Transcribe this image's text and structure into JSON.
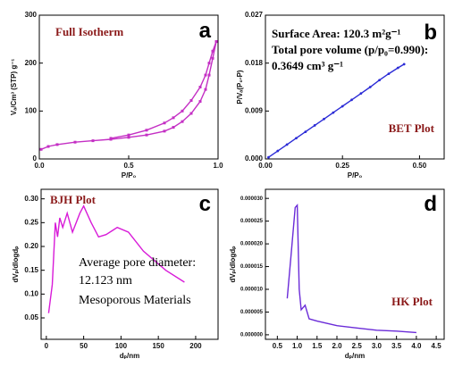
{
  "chart_data": [
    {
      "type": "line",
      "title": "Full Isotherm",
      "panel_label": "a",
      "x_label": "P/P₀",
      "y_label": "Vₐ/Cm³ (STP) g⁻¹",
      "xlim": [
        0,
        1.0
      ],
      "xticks": [
        {
          "value": 0,
          "label": "0.0"
        },
        0.5,
        {
          "value": 1,
          "label": "1.0"
        }
      ],
      "ylim": [
        0,
        300
      ],
      "yticks": [
        0,
        100,
        200,
        300
      ],
      "markers": "square",
      "series": [
        {
          "color": "#c42fc4",
          "x": [
            0.01,
            0.05,
            0.1,
            0.2,
            0.3,
            0.4,
            0.5,
            0.6,
            0.7,
            0.75,
            0.8,
            0.85,
            0.9,
            0.93,
            0.95,
            0.97,
            0.99
          ],
          "values": [
            20,
            26,
            30,
            35,
            38,
            41,
            45,
            50,
            58,
            66,
            78,
            95,
            120,
            145,
            175,
            210,
            245
          ]
        },
        {
          "color": "#c42fc4",
          "x": [
            0.4,
            0.5,
            0.6,
            0.7,
            0.75,
            0.8,
            0.85,
            0.9,
            0.93,
            0.95,
            0.97,
            0.99
          ],
          "values": [
            43,
            50,
            60,
            75,
            86,
            100,
            122,
            150,
            175,
            200,
            225,
            245
          ]
        }
      ]
    },
    {
      "type": "line",
      "title": "BET Plot",
      "panel_label": "b",
      "x_label": "P/P₀",
      "y_label": "P/Vₐ(P₀-P)",
      "annotations": [
        "Surface Area: 120.3 m²g⁻¹",
        "Total pore volume (p/p₀=0.990):",
        "0.3649 cm³ g⁻¹"
      ],
      "xlim": [
        0,
        0.58
      ],
      "xticks": [
        {
          "value": 0,
          "label": "0.00"
        },
        0.25,
        {
          "value": 0.5,
          "label": "0.50"
        }
      ],
      "ylim": [
        0,
        0.027
      ],
      "yticks": [
        {
          "value": 0,
          "label": "0.000"
        },
        0.009,
        0.018,
        0.027
      ],
      "markers": "circle",
      "series": [
        {
          "color": "#2b2bd6",
          "x": [
            0.01,
            0.04,
            0.07,
            0.1,
            0.13,
            0.16,
            0.19,
            0.22,
            0.25,
            0.28,
            0.31,
            0.34,
            0.37,
            0.4,
            0.43,
            0.45
          ],
          "values": [
            0.0003,
            0.0015,
            0.0027,
            0.0039,
            0.0051,
            0.0063,
            0.0075,
            0.0087,
            0.0099,
            0.0111,
            0.0123,
            0.0135,
            0.0148,
            0.016,
            0.0171,
            0.0178
          ]
        }
      ]
    },
    {
      "type": "line",
      "title": "BJH Plot",
      "panel_label": "c",
      "x_label": "dₚ/nm",
      "y_label": "dVₚ/dlogdₚ",
      "annotations": [
        "Average pore diameter:",
        "12.123 nm",
        "Mesoporous Materials"
      ],
      "xlim": [
        -7,
        230
      ],
      "xticks": [
        0,
        50,
        100,
        150,
        200
      ],
      "ylim": [
        0.005,
        0.32
      ],
      "yticks": [
        0.05,
        {
          "value": 0.1,
          "label": "0.10"
        },
        0.15,
        {
          "value": 0.2,
          "label": "0.20"
        },
        0.25,
        {
          "value": 0.3,
          "label": "0.30"
        }
      ],
      "series": [
        {
          "color": "#d81bd8",
          "x": [
            3,
            8,
            12,
            15,
            18,
            22,
            28,
            35,
            45,
            50,
            60,
            70,
            80,
            95,
            110,
            130,
            160,
            185
          ],
          "values": [
            0.06,
            0.12,
            0.25,
            0.22,
            0.26,
            0.24,
            0.27,
            0.23,
            0.27,
            0.285,
            0.25,
            0.22,
            0.225,
            0.24,
            0.23,
            0.19,
            0.15,
            0.125
          ]
        }
      ]
    },
    {
      "type": "line",
      "title": "HK Plot",
      "panel_label": "d",
      "x_label": "dₚ/nm",
      "y_label": "dVₚ/dlogdₚ",
      "xlim": [
        0.2,
        4.7
      ],
      "xticks": [
        0.5,
        {
          "value": 1,
          "label": "1.0"
        },
        1.5,
        {
          "value": 2,
          "label": "2.0"
        },
        2.5,
        {
          "value": 3,
          "label": "3.0"
        },
        3.5,
        {
          "value": 4,
          "label": "4.0"
        },
        4.5
      ],
      "ylim": [
        -1e-06,
        3.2e-05
      ],
      "yticks": [
        {
          "value": 0,
          "label": "0.000000"
        },
        {
          "value": 5e-06,
          "label": "0.000005"
        },
        {
          "value": 1e-05,
          "label": "0.000010"
        },
        {
          "value": 1.5e-05,
          "label": "0.000015"
        },
        {
          "value": 2e-05,
          "label": "0.000020"
        },
        {
          "value": 2.5e-05,
          "label": "0.000025"
        },
        {
          "value": 3e-05,
          "label": "0.000030"
        }
      ],
      "series": [
        {
          "color": "#6a2bd8",
          "x": [
            0.75,
            0.85,
            0.95,
            1.0,
            1.05,
            1.1,
            1.2,
            1.3,
            1.5,
            2.0,
            2.5,
            3.0,
            3.5,
            4.0
          ],
          "values": [
            8e-06,
            1.8e-05,
            2.8e-05,
            2.85e-05,
            1e-05,
            5.5e-06,
            6.5e-06,
            3.5e-06,
            3e-06,
            2e-06,
            1.5e-06,
            1e-06,
            8e-07,
            5e-07
          ]
        }
      ]
    }
  ]
}
